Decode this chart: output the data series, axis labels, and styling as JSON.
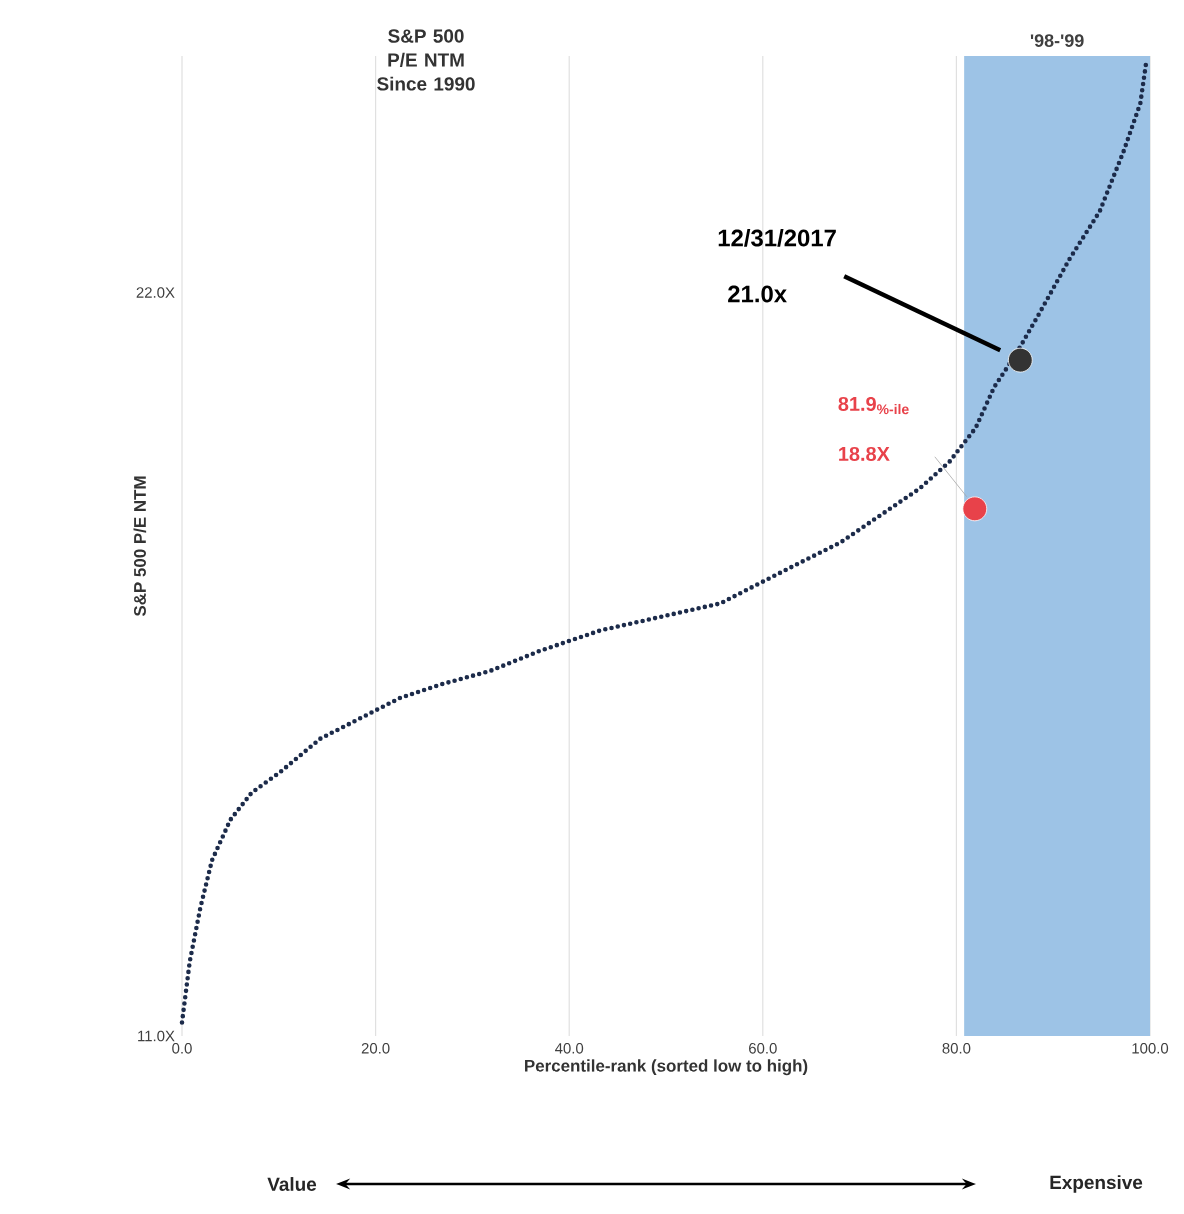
{
  "chart_data": {
    "type": "line",
    "title": "S&P 500 P/E NTM Since 1990",
    "xlabel": "Percentile-rank (sorted low to high)",
    "ylabel": "S&P 500 P/E NTM",
    "xlim": [
      0,
      100
    ],
    "ylim": [
      11,
      25.5
    ],
    "xticks": [
      {
        "value": 0,
        "label": "0.0"
      },
      {
        "value": 20,
        "label": "20.0"
      },
      {
        "value": 40,
        "label": "40.0"
      },
      {
        "value": 60,
        "label": "60.0"
      },
      {
        "value": 80,
        "label": "80.0"
      },
      {
        "value": 100,
        "label": "100.0"
      }
    ],
    "yticks": [
      {
        "value": 11,
        "label": "11.0X"
      },
      {
        "value": 22,
        "label": "22.0X"
      }
    ],
    "grid": "x",
    "series": [
      {
        "color": "#1c2b4a",
        "line_style": "dotted",
        "x": [
          0,
          0.8,
          1.9,
          3.1,
          5,
          7.2,
          10.1,
          14.3,
          18.4,
          22.5,
          26.7,
          31.8,
          37,
          43.2,
          49.4,
          55.6,
          59.7,
          63.8,
          68,
          72.1,
          76.2,
          79.3,
          82,
          83.9,
          86.2,
          88.6,
          91.7,
          94.8,
          97.3,
          99,
          99.6
        ],
        "values": [
          11.2,
          12.1,
          12.9,
          13.6,
          14.2,
          14.6,
          14.9,
          15.4,
          15.7,
          16.0,
          16.2,
          16.4,
          16.7,
          17.0,
          17.2,
          17.4,
          17.7,
          18.0,
          18.3,
          18.7,
          19.1,
          19.5,
          20.0,
          20.6,
          21.1,
          21.7,
          22.5,
          23.2,
          24.1,
          24.8,
          25.4
        ]
      },
      {
        "type": "scatter",
        "marker": "circle",
        "color": "#333333",
        "x": [
          86.6
        ],
        "values": [
          21.0
        ]
      },
      {
        "type": "scatter",
        "marker": "circle",
        "color": "#e8424a",
        "x": [
          81.9
        ],
        "values": [
          18.8
        ]
      }
    ],
    "bands": [
      {
        "axis": "x",
        "from": 80.8,
        "to": 100,
        "label": "'98-'99",
        "color": "#9dc3e6"
      }
    ],
    "annotations": [
      "12/31/2017",
      "21.0x",
      "81.9$_{%-ile}$",
      "18.8X",
      "Value",
      "Expensive"
    ]
  }
}
